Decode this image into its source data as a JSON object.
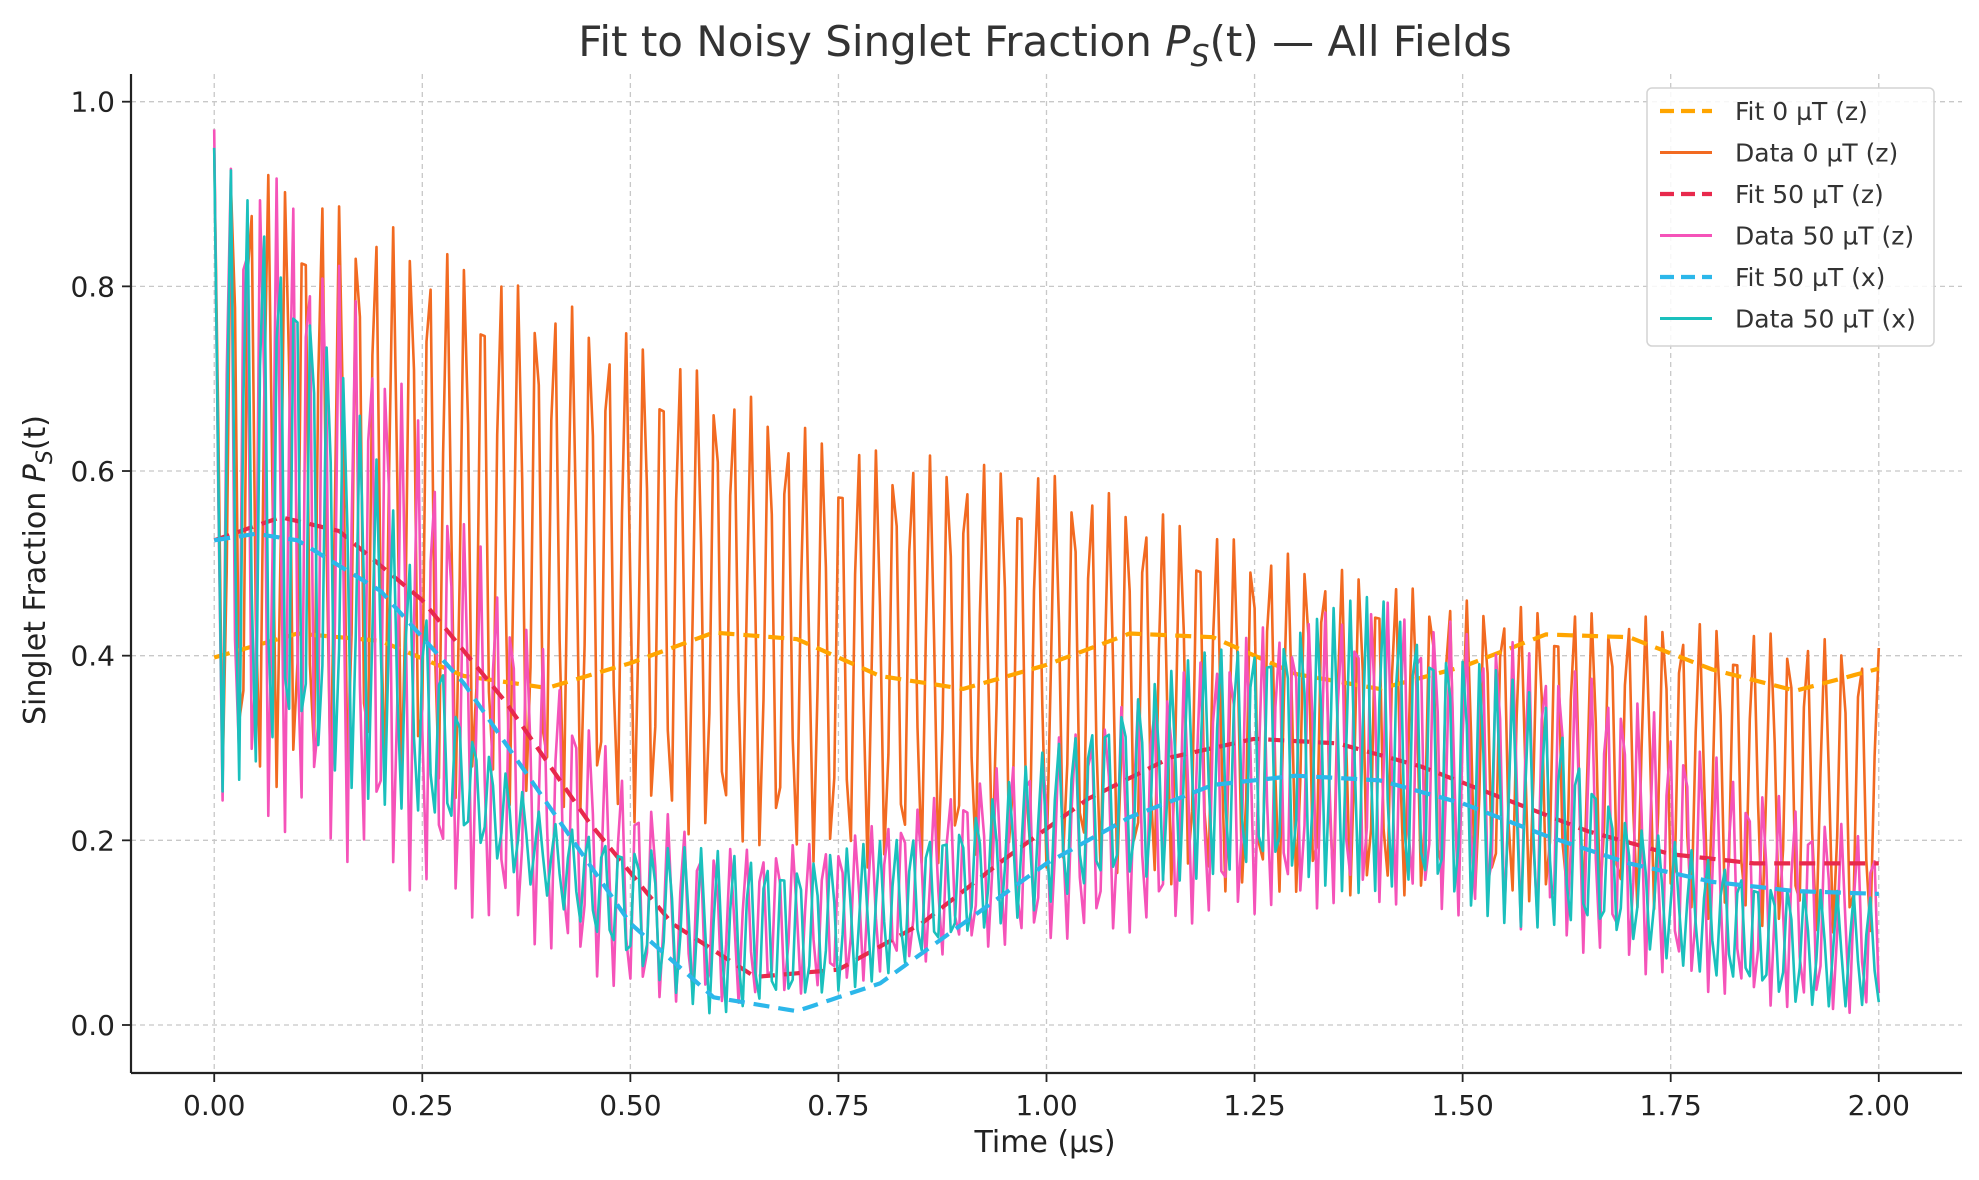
{
  "chart_data": {
    "type": "line",
    "title_parts": {
      "prefix": "Fit to Noisy Singlet Fraction ",
      "symbol": "P",
      "subscript": "S",
      "arg": "(t)",
      "suffix": " — All Fields"
    },
    "xlabel": "Time (µs)",
    "ylabel_parts": {
      "prefix": "Singlet Fraction ",
      "symbol": "P",
      "subscript": "S",
      "arg": "(t)"
    },
    "xlim": [
      -0.1,
      2.1
    ],
    "ylim": [
      -0.052,
      1.03
    ],
    "xticks": [
      0.0,
      0.25,
      0.5,
      0.75,
      1.0,
      1.25,
      1.5,
      1.75,
      2.0
    ],
    "xtick_labels": [
      "0.00",
      "0.25",
      "0.50",
      "0.75",
      "1.00",
      "1.25",
      "1.50",
      "1.75",
      "2.00"
    ],
    "yticks": [
      0.0,
      0.2,
      0.4,
      0.6,
      0.8,
      1.0
    ],
    "ytick_labels": [
      "0.0",
      "0.2",
      "0.4",
      "0.6",
      "0.8",
      "1.0"
    ],
    "grid": true,
    "legend_position": "top-right",
    "time_step": 0.005,
    "series": [
      {
        "name": "Fit 0 µT (z)",
        "style": "dashed",
        "color": "#FFA500",
        "x": [
          0.0,
          0.1,
          0.2,
          0.3,
          0.4,
          0.5,
          0.6,
          0.7,
          0.8,
          0.9,
          1.0,
          1.1,
          1.2,
          1.3,
          1.4,
          1.5,
          1.6,
          1.7,
          1.8,
          1.9,
          2.0
        ],
        "y": [
          0.398,
          0.424,
          0.416,
          0.378,
          0.365,
          0.392,
          0.425,
          0.418,
          0.378,
          0.364,
          0.39,
          0.424,
          0.42,
          0.38,
          0.364,
          0.388,
          0.423,
          0.42,
          0.385,
          0.362,
          0.386
        ]
      },
      {
        "name": "Data 0 µT (z)",
        "style": "solid",
        "color": "#F26A21",
        "envelope_x": [
          0.0,
          0.25,
          0.5,
          0.75,
          1.0,
          1.25,
          1.5,
          1.75,
          2.0
        ],
        "upper": [
          0.95,
          0.85,
          0.75,
          0.63,
          0.6,
          0.52,
          0.46,
          0.44,
          0.41
        ],
        "lower": [
          0.26,
          0.25,
          0.22,
          0.17,
          0.17,
          0.14,
          0.14,
          0.12,
          0.09
        ],
        "osc_period": 0.0215
      },
      {
        "name": "Fit 50 µT (z)",
        "style": "dashed",
        "color": "#E8294C",
        "x": [
          0.0,
          0.08,
          0.15,
          0.25,
          0.35,
          0.45,
          0.55,
          0.65,
          0.75,
          0.85,
          0.95,
          1.05,
          1.15,
          1.25,
          1.35,
          1.45,
          1.55,
          1.65,
          1.75,
          1.85,
          2.0
        ],
        "y": [
          0.525,
          0.55,
          0.535,
          0.46,
          0.35,
          0.22,
          0.11,
          0.052,
          0.06,
          0.11,
          0.18,
          0.245,
          0.29,
          0.31,
          0.305,
          0.28,
          0.245,
          0.21,
          0.185,
          0.175,
          0.175
        ]
      },
      {
        "name": "Data 50 µT (z)",
        "style": "solid",
        "color": "#F553B9",
        "envelope_x": [
          0.0,
          0.1,
          0.2,
          0.3,
          0.4,
          0.5,
          0.6,
          0.75,
          0.9,
          1.1,
          1.25,
          1.4,
          1.55,
          1.7,
          1.85,
          2.0
        ],
        "upper": [
          0.97,
          0.9,
          0.75,
          0.55,
          0.4,
          0.26,
          0.19,
          0.2,
          0.26,
          0.35,
          0.43,
          0.46,
          0.42,
          0.36,
          0.26,
          0.2
        ],
        "lower": [
          0.24,
          0.2,
          0.16,
          0.12,
          0.08,
          0.03,
          0.02,
          0.04,
          0.08,
          0.1,
          0.12,
          0.13,
          0.11,
          0.06,
          0.02,
          0.01
        ],
        "osc_period": 0.0188
      },
      {
        "name": "Fit 50 µT (x)",
        "style": "dashed",
        "color": "#2CB7EA",
        "x": [
          0.0,
          0.05,
          0.1,
          0.2,
          0.3,
          0.4,
          0.5,
          0.6,
          0.7,
          0.8,
          0.9,
          1.0,
          1.1,
          1.2,
          1.3,
          1.4,
          1.5,
          1.6,
          1.7,
          1.8,
          1.9,
          2.0
        ],
        "y": [
          0.525,
          0.532,
          0.525,
          0.47,
          0.37,
          0.24,
          0.11,
          0.03,
          0.015,
          0.045,
          0.11,
          0.175,
          0.225,
          0.26,
          0.27,
          0.265,
          0.24,
          0.205,
          0.175,
          0.155,
          0.145,
          0.142
        ]
      },
      {
        "name": "Data 50 µT (x)",
        "style": "solid",
        "color": "#1AC0BD",
        "envelope_x": [
          0.0,
          0.1,
          0.2,
          0.3,
          0.4,
          0.5,
          0.6,
          0.7,
          0.8,
          0.9,
          1.0,
          1.1,
          1.2,
          1.3,
          1.4,
          1.5,
          1.6,
          1.7,
          1.8,
          1.9,
          2.0
        ],
        "upper": [
          0.95,
          0.85,
          0.6,
          0.33,
          0.22,
          0.2,
          0.19,
          0.18,
          0.2,
          0.22,
          0.3,
          0.36,
          0.41,
          0.44,
          0.47,
          0.41,
          0.35,
          0.22,
          0.18,
          0.15,
          0.14
        ],
        "lower": [
          0.25,
          0.27,
          0.24,
          0.2,
          0.14,
          0.06,
          0.01,
          0.02,
          0.05,
          0.09,
          0.13,
          0.15,
          0.16,
          0.15,
          0.14,
          0.12,
          0.1,
          0.09,
          0.05,
          0.02,
          0.02
        ],
        "osc_period": 0.0195
      }
    ]
  }
}
